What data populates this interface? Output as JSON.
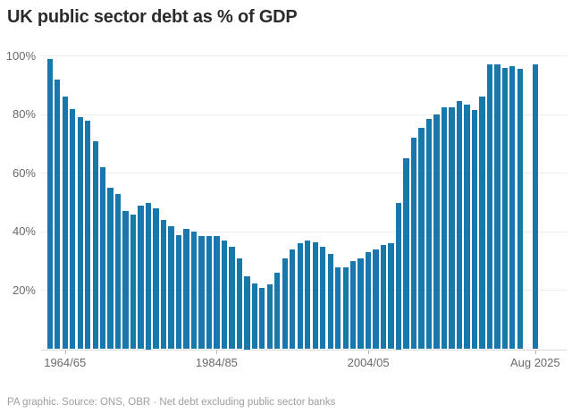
{
  "title": "UK public sector debt as % of GDP",
  "footer": "PA graphic. Source: ONS, OBR · Net debt excluding public sector banks",
  "colors": {
    "background": "#ffffff",
    "bar": "#1878ab",
    "title": "#2b2b2b",
    "axis_label": "#6a6a6a",
    "gridline": "#ededed",
    "baseline": "#d8d8d8",
    "tick": "#b5b5b5",
    "footer": "#9e9e9e"
  },
  "chart_data": {
    "type": "bar",
    "title": "UK public sector debt as % of GDP",
    "xlabel": "",
    "ylabel": "",
    "ylim": [
      0,
      100
    ],
    "grid": "horizontal",
    "legend": "none",
    "gap_before_last": true,
    "yticks": [
      {
        "label": "100%",
        "value": 100
      },
      {
        "label": "80%",
        "value": 80
      },
      {
        "label": "60%",
        "value": 60
      },
      {
        "label": "40%",
        "value": 40
      },
      {
        "label": "20%",
        "value": 20
      }
    ],
    "xticks": [
      {
        "label": "1964/65",
        "slot": 2
      },
      {
        "label": "1984/85",
        "slot": 22
      },
      {
        "label": "2004/05",
        "slot": 42
      },
      {
        "label": "Aug 2025",
        "slot": 64
      }
    ],
    "x": [
      "1962/63",
      "1963/64",
      "1964/65",
      "1965/66",
      "1966/67",
      "1967/68",
      "1968/69",
      "1969/70",
      "1970/71",
      "1971/72",
      "1972/73",
      "1973/74",
      "1974/75",
      "1975/76",
      "1976/77",
      "1977/78",
      "1978/79",
      "1979/80",
      "1980/81",
      "1981/82",
      "1982/83",
      "1983/84",
      "1984/85",
      "1985/86",
      "1986/87",
      "1987/88",
      "1988/89",
      "1989/90",
      "1990/91",
      "1991/92",
      "1992/93",
      "1993/94",
      "1994/95",
      "1995/96",
      "1996/97",
      "1997/98",
      "1998/99",
      "1999/00",
      "2000/01",
      "2001/02",
      "2002/03",
      "2003/04",
      "2004/05",
      "2005/06",
      "2006/07",
      "2007/08",
      "2008/09",
      "2009/10",
      "2010/11",
      "2011/12",
      "2012/13",
      "2013/14",
      "2014/15",
      "2015/16",
      "2016/17",
      "2017/18",
      "2018/19",
      "2019/20",
      "2020/21",
      "2021/22",
      "2022/23",
      "2023/24",
      "2024/25",
      "Aug 2025"
    ],
    "values": [
      99,
      92,
      86,
      82,
      79,
      78,
      71,
      62,
      55,
      53,
      47,
      46,
      49,
      50,
      48,
      44,
      42,
      39,
      41,
      40,
      38.5,
      38.5,
      38.5,
      37,
      35,
      31,
      25,
      22.5,
      21,
      22,
      26,
      31,
      34,
      36,
      37,
      36.5,
      35,
      32.5,
      28,
      28,
      30,
      31,
      33,
      34,
      35.5,
      36,
      50,
      65,
      72,
      75.5,
      78.5,
      80,
      82.5,
      82.5,
      84.5,
      83.5,
      81.5,
      86,
      97,
      97,
      96,
      96.5,
      95.5,
      97
    ]
  }
}
